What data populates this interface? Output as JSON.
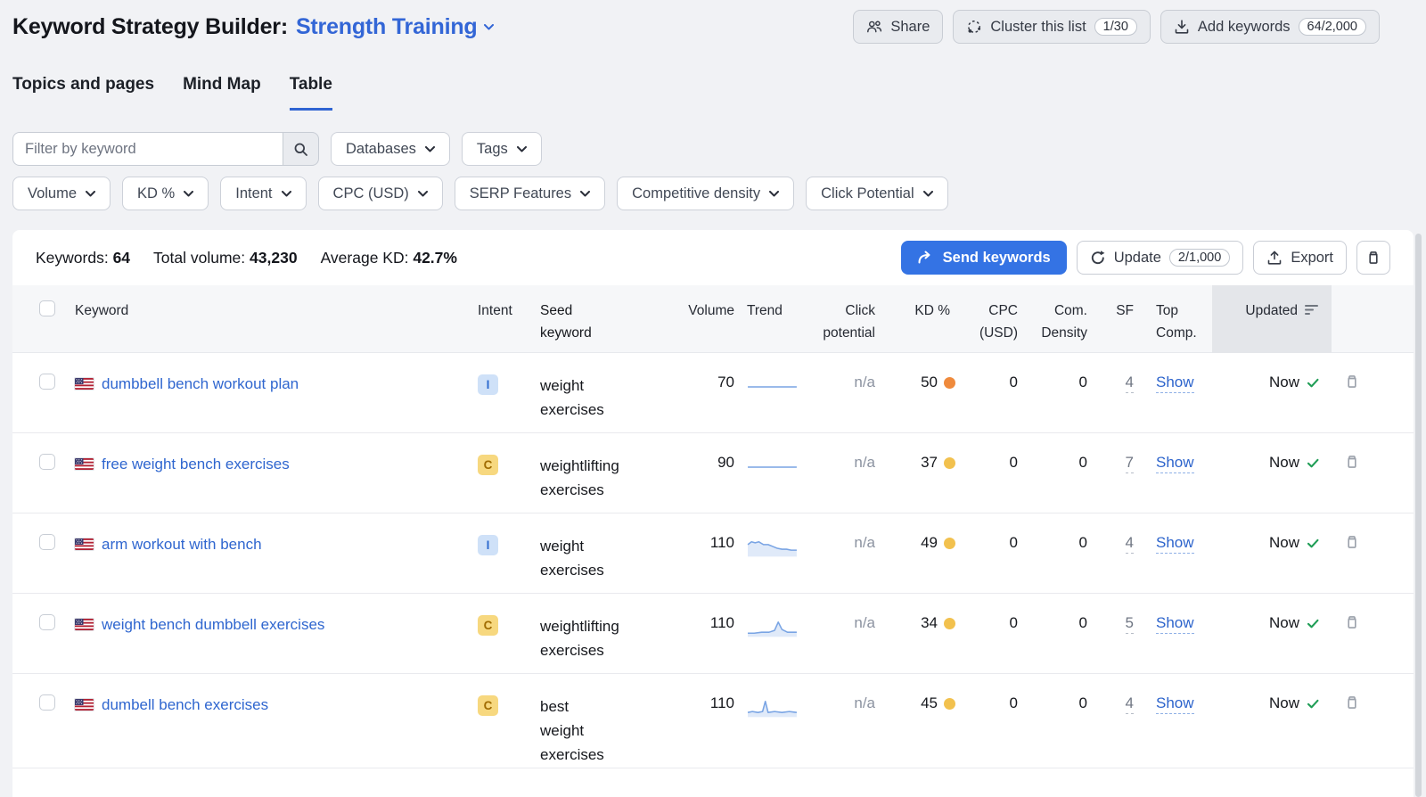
{
  "header": {
    "title": "Keyword Strategy Builder:",
    "list_name": "Strength Training",
    "share_label": "Share",
    "cluster_label": "Cluster this list",
    "cluster_badge": "1/30",
    "add_label": "Add keywords",
    "add_badge": "64/2,000"
  },
  "tabs": [
    {
      "label": "Topics and pages"
    },
    {
      "label": "Mind Map"
    },
    {
      "label": "Table"
    }
  ],
  "filters": {
    "search_placeholder": "Filter by keyword",
    "row1": [
      "Databases",
      "Tags"
    ],
    "row2": [
      "Volume",
      "KD %",
      "Intent",
      "CPC (USD)",
      "SERP Features",
      "Competitive density",
      "Click Potential"
    ]
  },
  "summary": {
    "keywords_label": "Keywords:",
    "keywords_value": "64",
    "volume_label": "Total volume:",
    "volume_value": "43,230",
    "kd_label": "Average KD:",
    "kd_value": "42.7%",
    "send_label": "Send keywords",
    "update_label": "Update",
    "update_badge": "2/1,000",
    "export_label": "Export"
  },
  "table": {
    "headers": {
      "keyword": "Keyword",
      "intent": "Intent",
      "seed": "Seed keyword",
      "volume": "Volume",
      "trend": "Trend",
      "click": "Click potential",
      "kd": "KD %",
      "cpc": "CPC (USD)",
      "com": "Com. Density",
      "sf": "SF",
      "top": "Top Comp.",
      "updated": "Updated"
    },
    "rows": [
      {
        "keyword": "dumbbell bench workout plan",
        "intent": {
          "label": "I",
          "bg": "#cfe1f8",
          "fg": "#2e6bcf"
        },
        "seed": "weight\nexercises",
        "volume": "70",
        "click": "n/a",
        "kd": "50",
        "kd_color": "#ef8a3c",
        "cpc": "0",
        "com": "0",
        "sf": "4",
        "top": "Show",
        "updated": "Now",
        "trend": {
          "area": false,
          "points": [
            [
              1,
              10
            ],
            [
              54,
              10
            ]
          ]
        }
      },
      {
        "keyword": "free weight bench exercises",
        "intent": {
          "label": "C",
          "bg": "#f7d87f",
          "fg": "#a06b00"
        },
        "seed": "weightlifting\nexercises",
        "volume": "90",
        "click": "n/a",
        "kd": "37",
        "kd_color": "#f2c14e",
        "cpc": "0",
        "com": "0",
        "sf": "7",
        "top": "Show",
        "updated": "Now",
        "trend": {
          "area": false,
          "points": [
            [
              1,
              10
            ],
            [
              54,
              10
            ]
          ]
        }
      },
      {
        "keyword": "arm workout with bench",
        "intent": {
          "label": "I",
          "bg": "#cfe1f8",
          "fg": "#2e6bcf"
        },
        "seed": "weight\nexercises",
        "volume": "110",
        "click": "n/a",
        "kd": "49",
        "kd_color": "#f2c14e",
        "cpc": "0",
        "com": "0",
        "sf": "4",
        "top": "Show",
        "updated": "Now",
        "trend": {
          "area": true,
          "points": [
            [
              1,
              7
            ],
            [
              5,
              4
            ],
            [
              9,
              5
            ],
            [
              13,
              4
            ],
            [
              18,
              7
            ],
            [
              23,
              7
            ],
            [
              28,
              9
            ],
            [
              33,
              11
            ],
            [
              38,
              12
            ],
            [
              43,
              12
            ],
            [
              48,
              13
            ],
            [
              54,
              13
            ]
          ]
        }
      },
      {
        "keyword": "weight bench dumbbell exercises",
        "intent": {
          "label": "C",
          "bg": "#f7d87f",
          "fg": "#a06b00"
        },
        "seed": "weightlifting\nexercises",
        "volume": "110",
        "click": "n/a",
        "kd": "34",
        "kd_color": "#f2c14e",
        "cpc": "0",
        "com": "0",
        "sf": "5",
        "top": "Show",
        "updated": "Now",
        "trend": {
          "area": true,
          "points": [
            [
              1,
              16
            ],
            [
              8,
              16
            ],
            [
              16,
              15
            ],
            [
              24,
              15
            ],
            [
              30,
              13
            ],
            [
              34,
              4
            ],
            [
              38,
              12
            ],
            [
              44,
              15
            ],
            [
              54,
              15
            ]
          ]
        }
      },
      {
        "keyword": "dumbell bench exercises",
        "intent": {
          "label": "C",
          "bg": "#f7d87f",
          "fg": "#a06b00"
        },
        "seed": "best\nweight\nexercises",
        "volume": "110",
        "click": "n/a",
        "kd": "45",
        "kd_color": "#f2c14e",
        "cpc": "0",
        "com": "0",
        "sf": "4",
        "top": "Show",
        "updated": "Now",
        "trend": {
          "area": true,
          "points": [
            [
              1,
              15
            ],
            [
              6,
              14
            ],
            [
              12,
              15
            ],
            [
              17,
              14
            ],
            [
              20,
              3
            ],
            [
              23,
              15
            ],
            [
              30,
              14
            ],
            [
              38,
              15
            ],
            [
              46,
              14
            ],
            [
              54,
              15
            ]
          ]
        }
      }
    ]
  },
  "colors": {
    "accent_blue": "#3473e4",
    "link_blue": "#2f66cf",
    "check_green": "#1f9d55",
    "kd_orange": "#ef8a3c",
    "kd_yellow": "#f2c14e"
  }
}
